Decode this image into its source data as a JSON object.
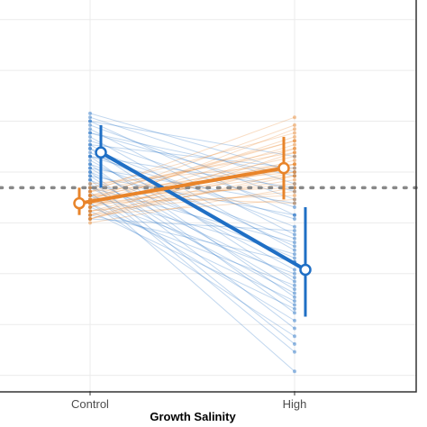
{
  "chart_data": {
    "type": "line",
    "xlabel": "Growth Salinity",
    "categories": [
      "Control",
      "High"
    ],
    "ylim": [
      0,
      1
    ],
    "reference_line": 0.52,
    "grid": true,
    "colors": {
      "blue": "#1f6fc5",
      "orange": "#e8842a",
      "reference": "#888888"
    },
    "summary_series": [
      {
        "color_key": "blue",
        "means": [
          0.61,
          0.31
        ],
        "lower": [
          0.52,
          0.19
        ],
        "upper": [
          0.68,
          0.47
        ]
      },
      {
        "color_key": "orange",
        "means": [
          0.48,
          0.57
        ],
        "lower": [
          0.45,
          0.49
        ],
        "upper": [
          0.52,
          0.65
        ]
      }
    ],
    "pairs": {
      "blue": [
        [
          0.71,
          0.56
        ],
        [
          0.7,
          0.53
        ],
        [
          0.69,
          0.45
        ],
        [
          0.68,
          0.49
        ],
        [
          0.67,
          0.4
        ],
        [
          0.66,
          0.51
        ],
        [
          0.65,
          0.36
        ],
        [
          0.64,
          0.47
        ],
        [
          0.63,
          0.33
        ],
        [
          0.62,
          0.42
        ],
        [
          0.62,
          0.28
        ],
        [
          0.61,
          0.37
        ],
        [
          0.6,
          0.24
        ],
        [
          0.6,
          0.44
        ],
        [
          0.59,
          0.31
        ],
        [
          0.58,
          0.2
        ],
        [
          0.58,
          0.39
        ],
        [
          0.57,
          0.26
        ],
        [
          0.56,
          0.16
        ],
        [
          0.56,
          0.34
        ],
        [
          0.55,
          0.22
        ],
        [
          0.54,
          0.12
        ],
        [
          0.54,
          0.29
        ],
        [
          0.53,
          0.1
        ],
        [
          0.52,
          0.25
        ],
        [
          0.51,
          0.05
        ],
        [
          0.5,
          0.18
        ],
        [
          0.49,
          0.3
        ],
        [
          0.48,
          0.14
        ],
        [
          0.47,
          0.27
        ],
        [
          0.46,
          0.21
        ],
        [
          0.45,
          0.33
        ],
        [
          0.44,
          0.41
        ],
        [
          0.69,
          0.6
        ],
        [
          0.66,
          0.55
        ],
        [
          0.63,
          0.57
        ],
        [
          0.6,
          0.52
        ],
        [
          0.57,
          0.48
        ],
        [
          0.55,
          0.45
        ],
        [
          0.52,
          0.38
        ],
        [
          0.5,
          0.35
        ],
        [
          0.48,
          0.23
        ]
      ],
      "orange": [
        [
          0.52,
          0.66
        ],
        [
          0.51,
          0.7
        ],
        [
          0.51,
          0.62
        ],
        [
          0.5,
          0.58
        ],
        [
          0.5,
          0.64
        ],
        [
          0.49,
          0.55
        ],
        [
          0.49,
          0.68
        ],
        [
          0.48,
          0.53
        ],
        [
          0.48,
          0.6
        ],
        [
          0.47,
          0.57
        ],
        [
          0.47,
          0.63
        ],
        [
          0.46,
          0.51
        ],
        [
          0.46,
          0.59
        ],
        [
          0.45,
          0.55
        ],
        [
          0.45,
          0.49
        ],
        [
          0.44,
          0.61
        ],
        [
          0.44,
          0.56
        ],
        [
          0.43,
          0.52
        ],
        [
          0.5,
          0.48
        ],
        [
          0.48,
          0.5
        ],
        [
          0.46,
          0.54
        ],
        [
          0.53,
          0.58
        ],
        [
          0.52,
          0.61
        ],
        [
          0.49,
          0.64
        ],
        [
          0.47,
          0.67
        ],
        [
          0.45,
          0.62
        ],
        [
          0.44,
          0.58
        ],
        [
          0.51,
          0.56
        ],
        [
          0.5,
          0.52
        ],
        [
          0.48,
          0.65
        ]
      ]
    }
  }
}
